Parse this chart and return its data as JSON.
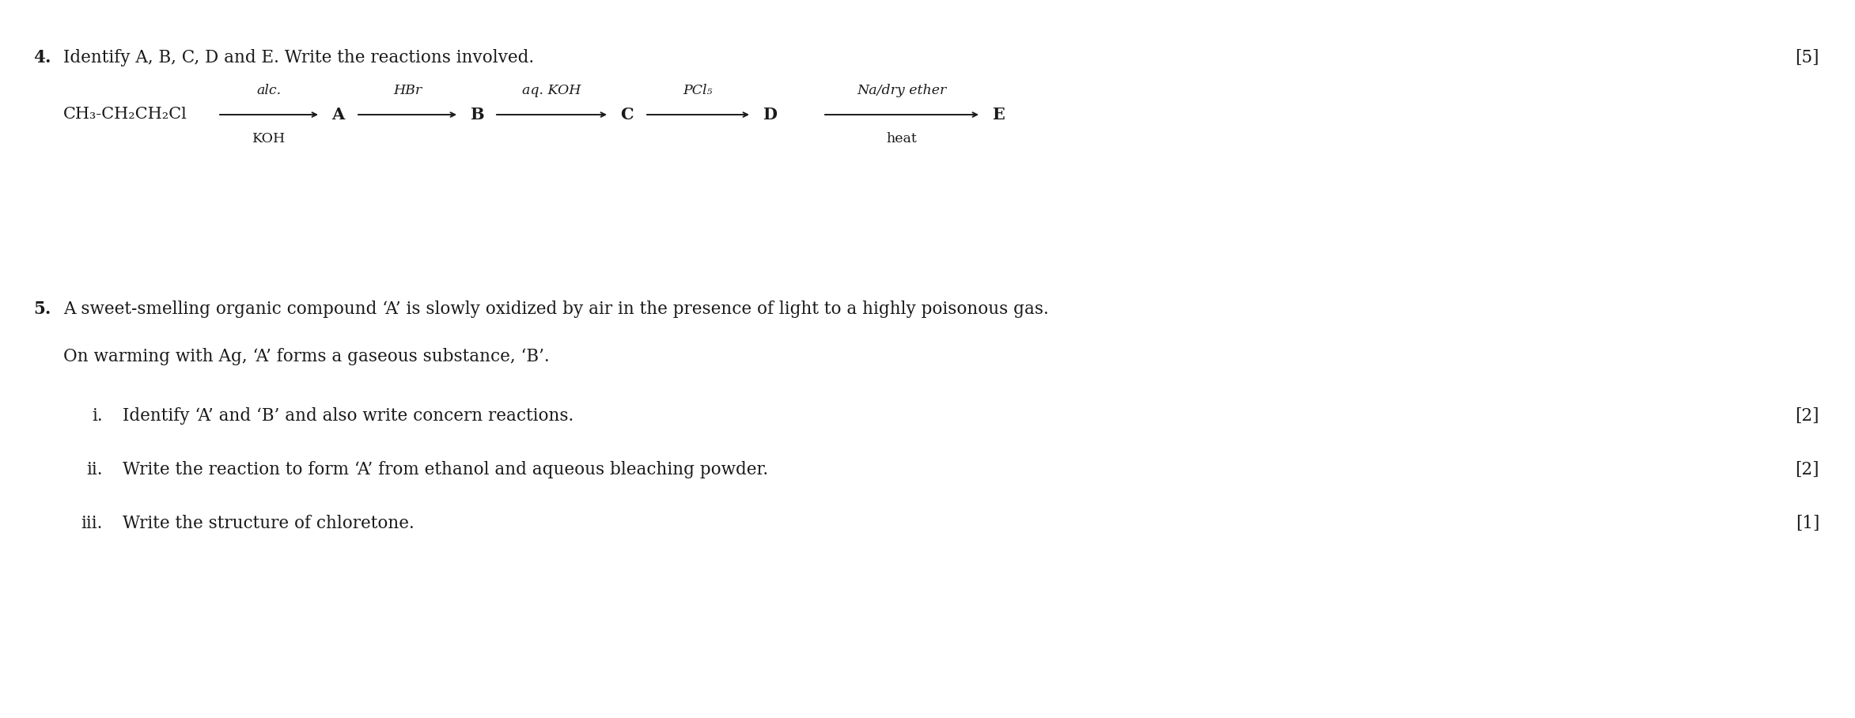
{
  "bg_color": "#ffffff",
  "figsize": [
    23.45,
    9.08
  ],
  "dpi": 100,
  "q4_number": "4.",
  "q4_text": "Identify A, B, C, D and E. Write the reactions involved.",
  "q4_marks": "[5]",
  "q4_formula": "CH₃-CH₂CH₂Cl",
  "q4_label_alc": "alc.",
  "q4_label_koh": "KOH",
  "q4_label_hbr": "HBr",
  "q4_label_aqkoh": "aq. KOH",
  "q4_label_pcl5": "PCl₅",
  "q4_label_na": "Na/dry ether",
  "q4_label_heat": "heat",
  "q4_A": "A",
  "q4_B": "B",
  "q4_C": "C",
  "q4_D": "D",
  "q4_E": "E",
  "q5_number": "5.",
  "q5_text": "A sweet-smelling organic compound ‘A’ is slowly oxidized by air in the presence of light to a highly poisonous gas.",
  "q5_text2": "On warming with Ag, ‘A’ forms a gaseous substance, ‘B’.",
  "q5i_num": "i.",
  "q5i_text": "Identify ‘A’ and ‘B’ and also write concern reactions.",
  "q5i_marks": "[2]",
  "q5ii_num": "ii.",
  "q5ii_text": "Write the reaction to form ‘A’ from ethanol and aqueous bleaching powder.",
  "q5ii_marks": "[2]",
  "q5iii_num": "iii.",
  "q5iii_text": "Write the structure of chloretone.",
  "q5iii_marks": "[1]",
  "font_family": "serif",
  "font_size_main": 15.5,
  "font_size_formula": 15.0,
  "font_size_arrow_label": 12.5,
  "text_color": "#1a1a1a"
}
